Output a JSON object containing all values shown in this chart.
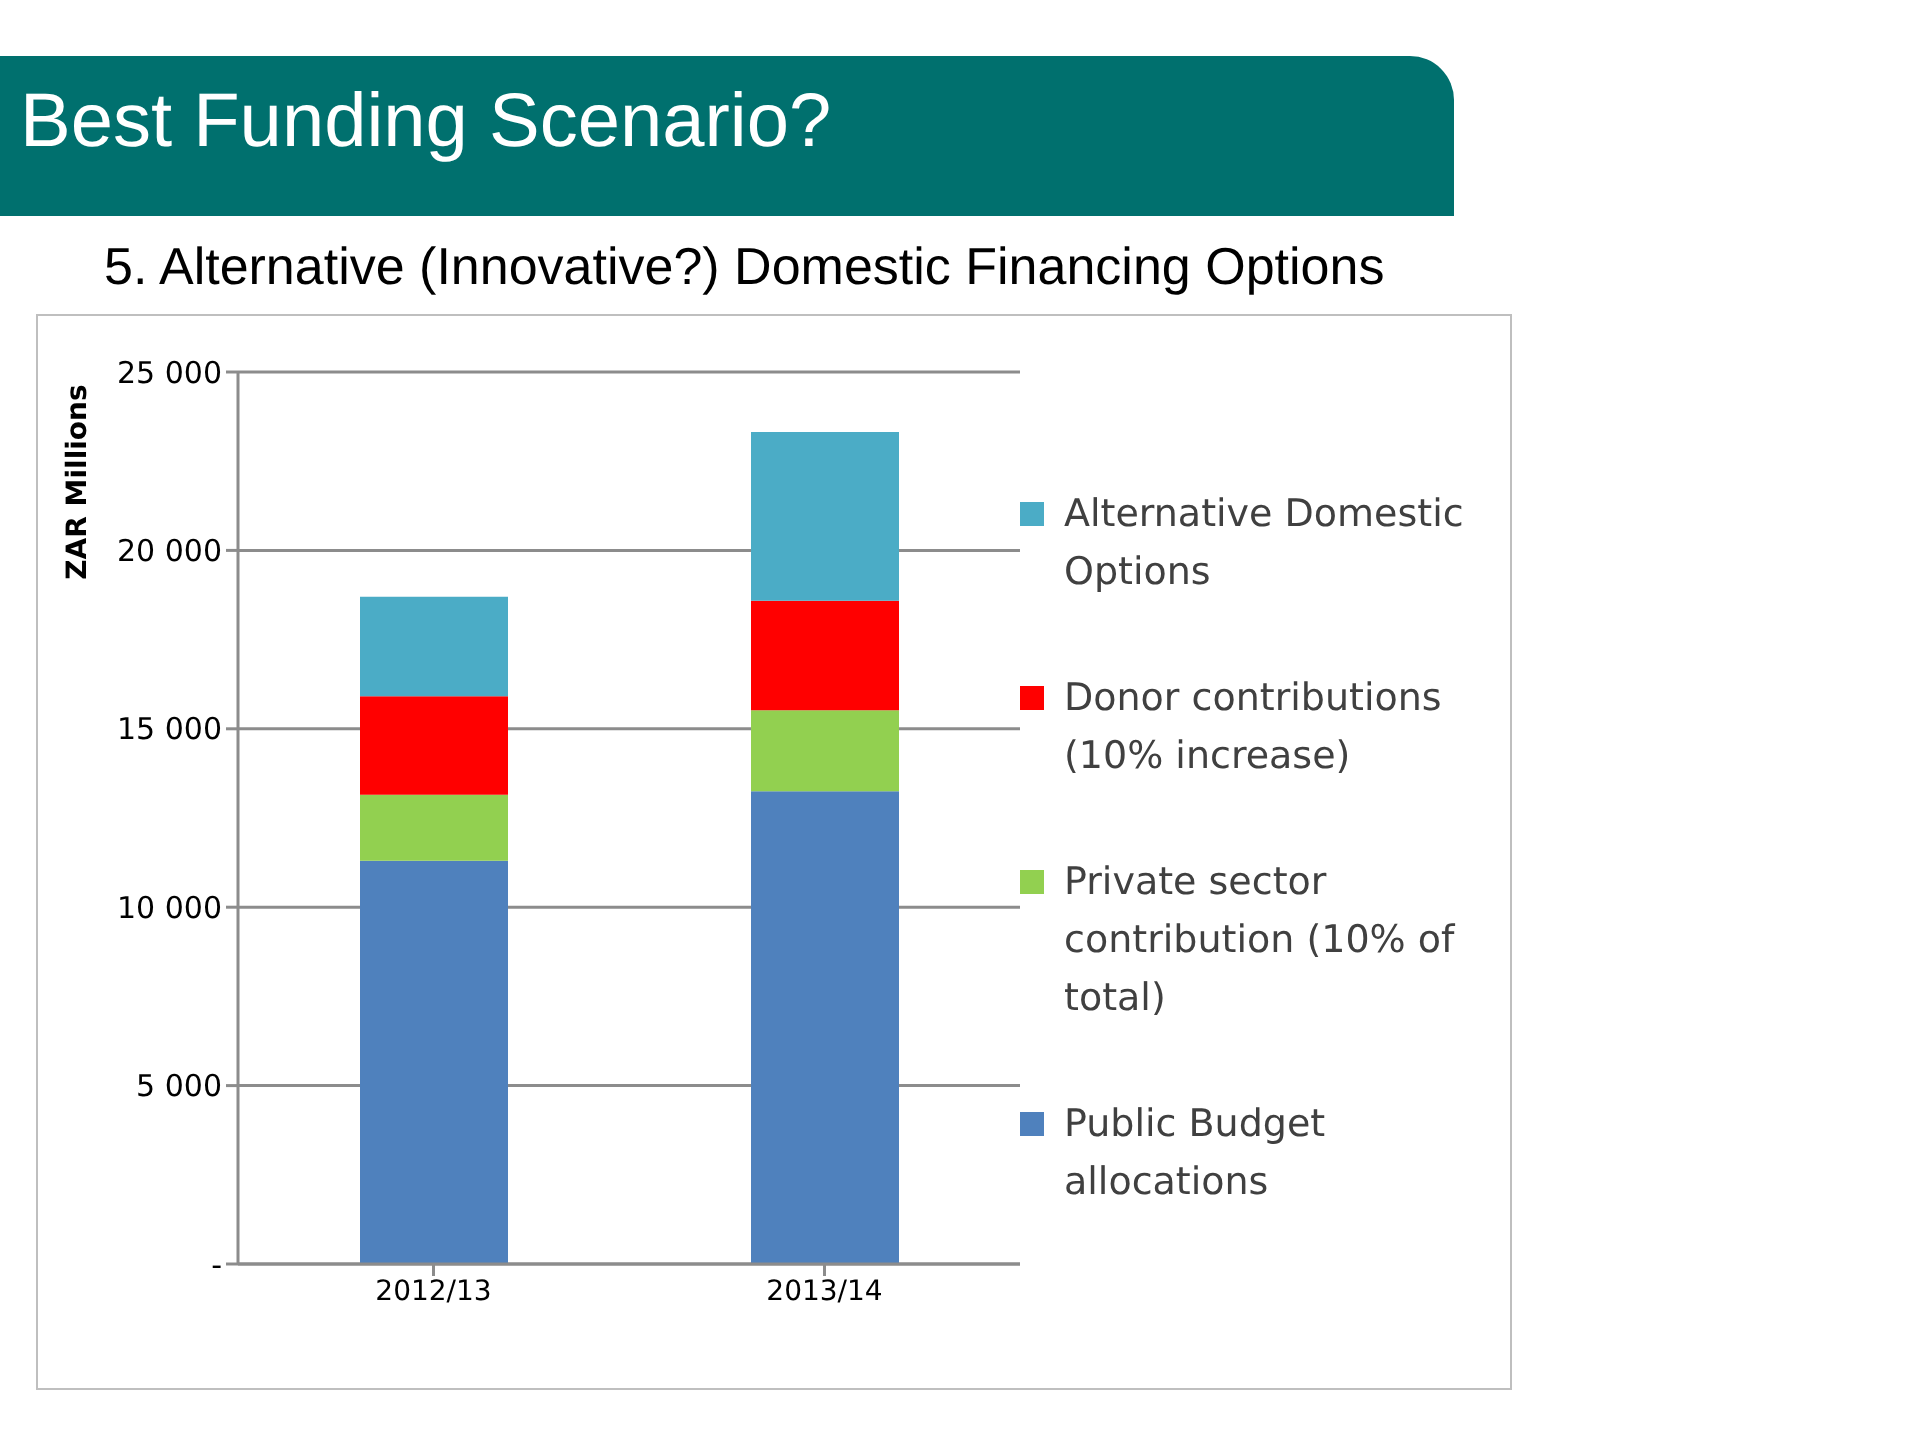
{
  "chart_data": {
    "type": "bar",
    "title": "Best Funding Scenario?",
    "subtitle": "5. Alternative (Innovative?) Domestic Financing Options",
    "ylabel": "ZAR Millions",
    "categories": [
      "2012/13",
      "2013/14"
    ],
    "stacked": true,
    "series": [
      {
        "name": "Public Budget allocations",
        "color": "#4f81bd",
        "values": [
          11300,
          13250
        ]
      },
      {
        "name": "Private sector contribution (10% of total)",
        "color": "#92d050",
        "values": [
          1850,
          2270
        ]
      },
      {
        "name": "Donor contributions (10% increase)",
        "color": "#ff0000",
        "values": [
          2760,
          3070
        ]
      },
      {
        "name": "Alternative Domestic Options",
        "color": "#4bacc6",
        "values": [
          2790,
          4730
        ]
      }
    ],
    "ylim": [
      0,
      25000
    ],
    "yticks": [
      {
        "value": 0,
        "label": "-"
      },
      {
        "value": 5000,
        "label": "5 000"
      },
      {
        "value": 10000,
        "label": "10 000"
      },
      {
        "value": 15000,
        "label": "15 000"
      },
      {
        "value": 20000,
        "label": "20 000"
      },
      {
        "value": 25000,
        "label": "25 000"
      }
    ],
    "grid": "y",
    "legend": "right"
  }
}
